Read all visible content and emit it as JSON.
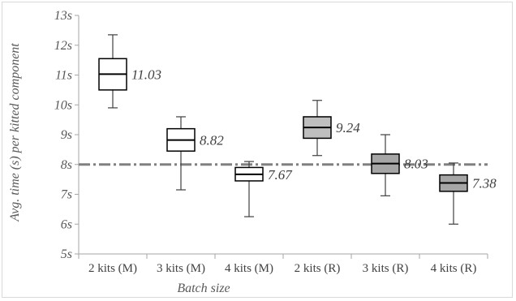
{
  "chart_data": {
    "type": "box",
    "title": "",
    "xlabel": "Batch size",
    "ylabel": "Avg. time (s) per kitted component",
    "ylim": [
      5,
      13
    ],
    "yticks": [
      "5s",
      "6s",
      "7s",
      "8s",
      "9s",
      "10s",
      "11s",
      "12s",
      "13s"
    ],
    "categories": [
      "2 kits (M)",
      "3 kits (M)",
      "4 kits (M)",
      "2 kits (R)",
      "3 kits (R)",
      "4 kits (R)"
    ],
    "boxes": [
      {
        "min": 9.9,
        "q1": 10.5,
        "median": 11.03,
        "q3": 11.55,
        "max": 12.35,
        "label": "11.03",
        "fill": "#ffffff"
      },
      {
        "min": 7.15,
        "q1": 8.45,
        "median": 8.82,
        "q3": 9.2,
        "max": 9.6,
        "label": "8.82",
        "fill": "#ffffff"
      },
      {
        "min": 6.25,
        "q1": 7.45,
        "median": 7.67,
        "q3": 7.9,
        "max": 8.1,
        "label": "7.67",
        "fill": "#ffffff"
      },
      {
        "min": 8.3,
        "q1": 8.88,
        "median": 9.24,
        "q3": 9.6,
        "max": 10.15,
        "label": "9.24",
        "fill": "#bfbfbf"
      },
      {
        "min": 6.95,
        "q1": 7.7,
        "median": 8.03,
        "q3": 8.35,
        "max": 9.0,
        "label": "8.03",
        "fill": "#a6a6a6"
      },
      {
        "min": 6.0,
        "q1": 7.1,
        "median": 7.38,
        "q3": 7.65,
        "max": 8.05,
        "label": "7.38",
        "fill": "#a6a6a6"
      }
    ],
    "reference_line": {
      "value": 8,
      "style": "dash-dot",
      "color": "#808080"
    },
    "grid": false,
    "legend": "none"
  }
}
